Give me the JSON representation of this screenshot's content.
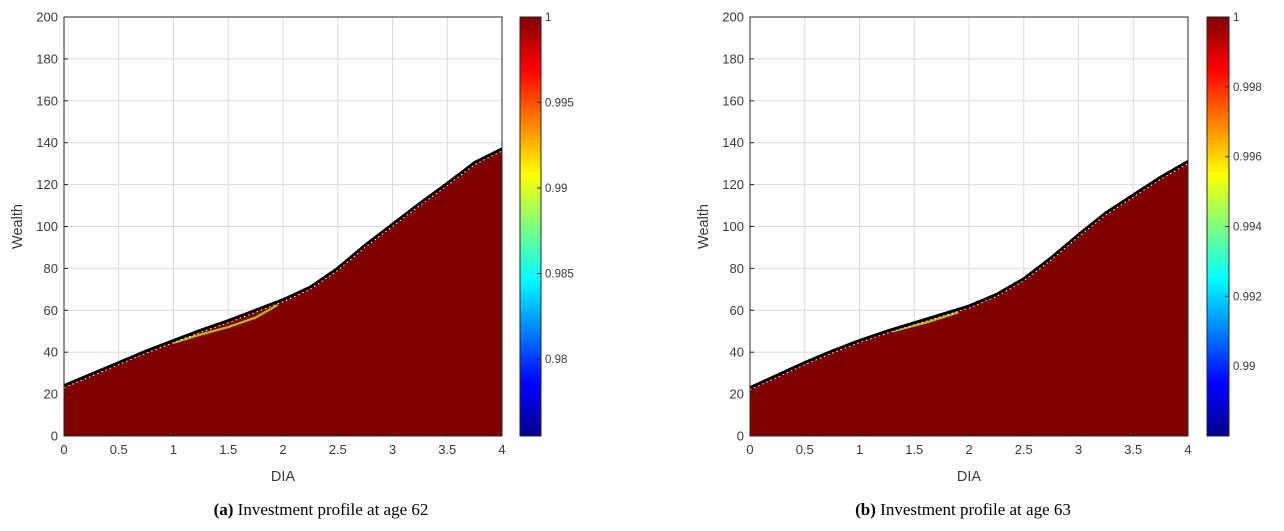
{
  "chart_data": [
    {
      "type": "heatmap",
      "panel_label": "(a)",
      "caption": "Investment profile at age 62",
      "xlabel": "DIA",
      "ylabel": "Wealth",
      "xlim": [
        0,
        4
      ],
      "ylim": [
        0,
        200
      ],
      "xticks": [
        "0",
        "0.5",
        "1",
        "1.5",
        "2",
        "2.5",
        "3",
        "3.5",
        "4"
      ],
      "yticks": [
        "0",
        "20",
        "40",
        "60",
        "80",
        "100",
        "120",
        "140",
        "160",
        "180",
        "200"
      ],
      "grid": true,
      "colormap": "jet",
      "colorbar": {
        "range": [
          0.9755,
          1.0
        ],
        "ticks": [
          "0.98",
          "0.985",
          "0.99",
          "0.995",
          "1"
        ]
      },
      "fill_color": "#800000",
      "boundary": {
        "x": [
          0,
          0.25,
          0.5,
          0.75,
          1.0,
          1.25,
          1.5,
          1.75,
          2.0,
          2.25,
          2.5,
          2.75,
          3.0,
          3.25,
          3.5,
          3.75,
          4.0
        ],
        "y": [
          24,
          29.5,
          35,
          40.5,
          45.5,
          50.5,
          55,
          60,
          65,
          71,
          80,
          91,
          101,
          111,
          120.5,
          130.5,
          137
        ]
      },
      "lower_band": {
        "x": [
          1.0,
          1.25,
          1.5,
          1.75,
          1.95
        ],
        "y": [
          44.5,
          48.5,
          52,
          56.5,
          62.5
        ]
      }
    },
    {
      "type": "heatmap",
      "panel_label": "(b)",
      "caption": "Investment profile at age 63",
      "xlabel": "DIA",
      "ylabel": "Wealth",
      "xlim": [
        0,
        4
      ],
      "ylim": [
        0,
        200
      ],
      "xticks": [
        "0",
        "0.5",
        "1",
        "1.5",
        "2",
        "2.5",
        "3",
        "3.5",
        "4"
      ],
      "yticks": [
        "0",
        "20",
        "40",
        "60",
        "80",
        "100",
        "120",
        "140",
        "160",
        "180",
        "200"
      ],
      "grid": true,
      "colormap": "jet",
      "colorbar": {
        "range": [
          0.988,
          1.0
        ],
        "ticks": [
          "0.99",
          "0.992",
          "0.994",
          "0.996",
          "0.998",
          "1"
        ]
      },
      "fill_color": "#800000",
      "boundary": {
        "x": [
          0,
          0.25,
          0.5,
          0.75,
          1.0,
          1.25,
          1.5,
          1.75,
          2.0,
          2.25,
          2.5,
          2.75,
          3.0,
          3.25,
          3.5,
          3.75,
          4.0
        ],
        "y": [
          23,
          29,
          35,
          40.5,
          45.5,
          50,
          54,
          58,
          62,
          67.5,
          75,
          85,
          96,
          106.5,
          115,
          123.5,
          131
        ]
      },
      "lower_band": {
        "x": [
          1.3,
          1.6,
          1.9
        ],
        "y": [
          50,
          54,
          59
        ]
      }
    }
  ]
}
